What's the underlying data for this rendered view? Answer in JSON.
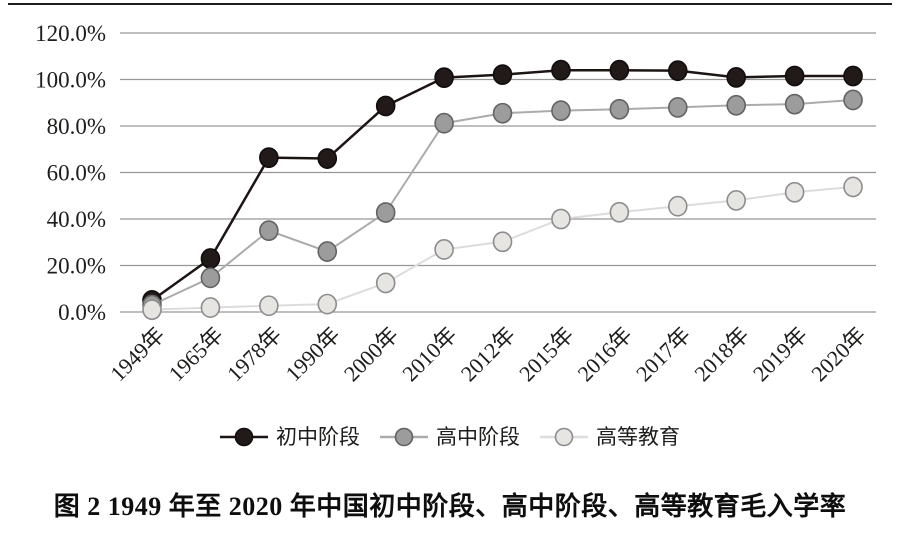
{
  "figure": {
    "caption": "图 2  1949 年至 2020 年中国初中阶段、高中阶段、高等教育毛入学率"
  },
  "chart_data": {
    "type": "line",
    "title": "",
    "xlabel": "",
    "ylabel": "",
    "categories": [
      "1949年",
      "1965年",
      "1978年",
      "1990年",
      "2000年",
      "2010年",
      "2012年",
      "2015年",
      "2016年",
      "2017年",
      "2018年",
      "2019年",
      "2020年"
    ],
    "series": [
      {
        "name": "初中阶段",
        "values": [
          5.0,
          23.0,
          66.4,
          66.0,
          88.6,
          100.8,
          102.1,
          104.0,
          104.0,
          103.8,
          100.9,
          101.5,
          101.5
        ],
        "line_color": "#1d1414",
        "dot_fill": "#221919",
        "dot_stroke": "#110d0d"
      },
      {
        "name": "高中阶段",
        "values": [
          3.0,
          14.7,
          35.0,
          26.0,
          42.8,
          81.2,
          85.5,
          86.6,
          87.2,
          88.0,
          88.9,
          89.4,
          91.2
        ],
        "line_color": "#ababab",
        "dot_fill": "#9c9c9c",
        "dot_stroke": "#636363"
      },
      {
        "name": "高等教育",
        "values": [
          1.0,
          1.9,
          2.7,
          3.4,
          12.5,
          26.9,
          30.2,
          40.0,
          42.9,
          45.5,
          48.0,
          51.5,
          53.8
        ],
        "line_color": "#dcdcdc",
        "dot_fill": "#e6e5e2",
        "dot_stroke": "#8d8d8d"
      }
    ],
    "ylim": [
      0,
      120
    ],
    "y_ticks": [
      0,
      20,
      40,
      60,
      80,
      100,
      120
    ],
    "y_tick_labels": [
      "0.0%",
      "20.0%",
      "40.0%",
      "60.0%",
      "80.0%",
      "100.0%",
      "120.0%"
    ],
    "grid": true,
    "legend_position": "bottom",
    "gridline_color": "#969696",
    "text_color": "#1d1d1b"
  }
}
